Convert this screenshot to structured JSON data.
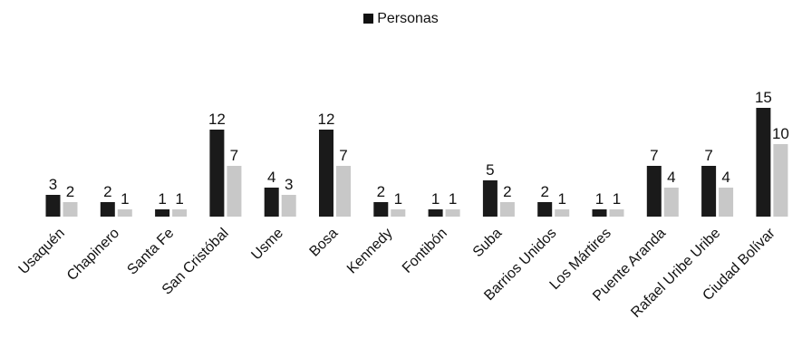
{
  "chart_data": {
    "type": "bar",
    "title": "",
    "legend": {
      "position": "top-center",
      "entries": [
        "Personas"
      ]
    },
    "xlabel": "",
    "ylabel": "",
    "ylim": [
      0,
      15
    ],
    "grid": false,
    "categories": [
      "Usaquén",
      "Chapinero",
      "Santa Fe",
      "San Cristóbal",
      "Usme",
      "Bosa",
      "Kennedy",
      "Fontibón",
      "Suba",
      "Barrios Unidos",
      "Los Mártires",
      "Puente Aranda",
      "Rafael Uribe Uribe",
      "Ciudad Bolívar"
    ],
    "series": [
      {
        "name": "Personas",
        "color": "#1a1a1a",
        "values": [
          3,
          2,
          1,
          12,
          4,
          12,
          2,
          1,
          5,
          2,
          1,
          7,
          7,
          15
        ]
      },
      {
        "color": "#c8c8c8",
        "values": [
          2,
          1,
          1,
          7,
          3,
          7,
          1,
          1,
          2,
          1,
          1,
          4,
          4,
          10
        ]
      }
    ]
  }
}
